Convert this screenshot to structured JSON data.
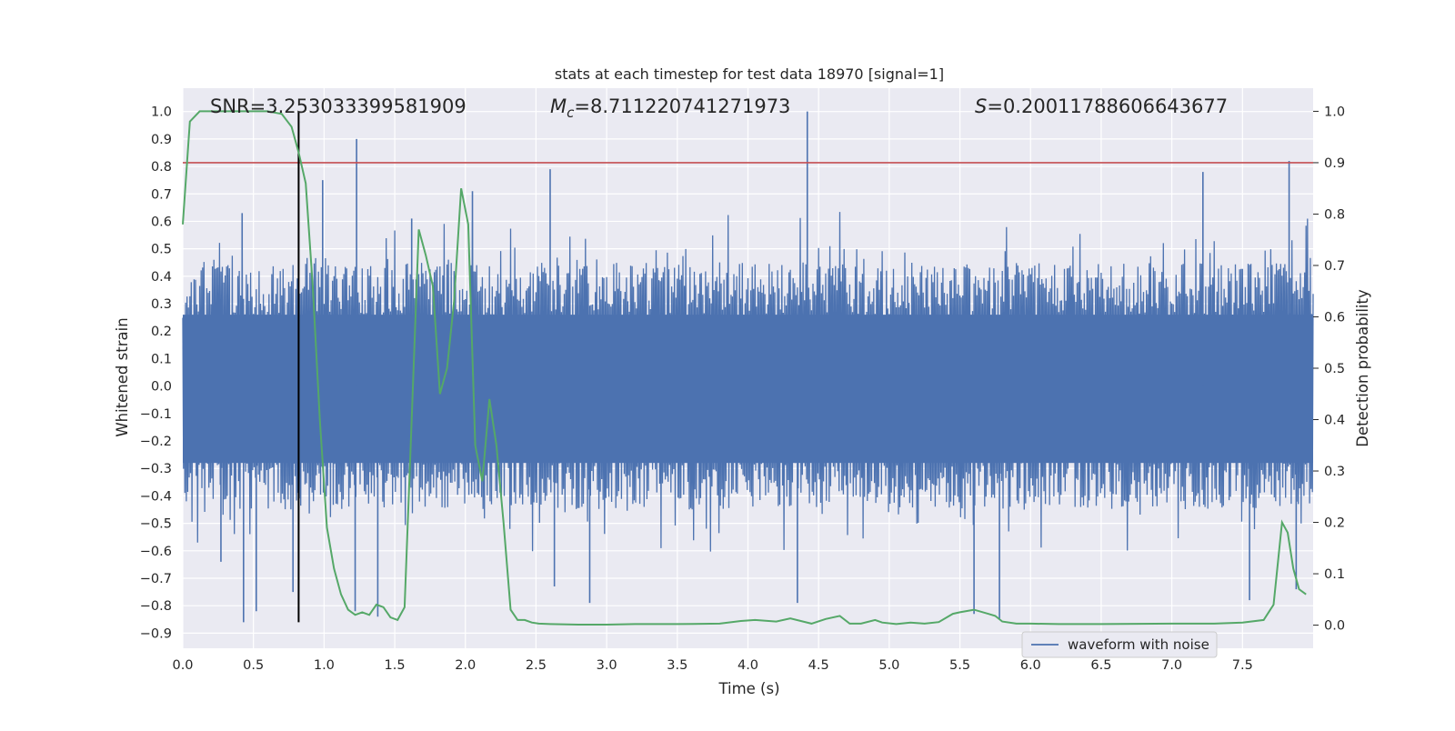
{
  "chart_data": {
    "type": "line",
    "title": "stats at each timestep for test data 18970 [signal=1]",
    "xlabel": "Time (s)",
    "ylabel": "Whitened strain",
    "ylabel_right": "Detection probability",
    "xlim": [
      0.0,
      8.0
    ],
    "ylim": [
      -0.955,
      1.085
    ],
    "ylim_right": [
      -0.045,
      1.045
    ],
    "x_ticks": [
      0.0,
      0.5,
      1.0,
      1.5,
      2.0,
      2.5,
      3.0,
      3.5,
      4.0,
      4.5,
      5.0,
      5.5,
      6.0,
      6.5,
      7.0,
      7.5
    ],
    "x_tick_labels": [
      "0.0",
      "0.5",
      "1.0",
      "1.5",
      "2.0",
      "2.5",
      "3.0",
      "3.5",
      "4.0",
      "4.5",
      "5.0",
      "5.5",
      "6.0",
      "6.5",
      "7.0",
      "7.5"
    ],
    "y_ticks": [
      1.0,
      0.9,
      0.8,
      0.7,
      0.6,
      0.5,
      0.4,
      0.3,
      0.2,
      0.1,
      0.0,
      -0.1,
      -0.2,
      -0.3,
      -0.4,
      -0.5,
      -0.6,
      -0.7,
      -0.8,
      -0.9
    ],
    "y_tick_labels": [
      "1.0",
      "0.9",
      "0.8",
      "0.7",
      "0.6",
      "0.5",
      "0.4",
      "0.3",
      "0.2",
      "0.1",
      "0.0",
      "−0.1",
      "−0.2",
      "−0.3",
      "−0.4",
      "−0.5",
      "−0.6",
      "−0.7",
      "−0.8",
      "−0.9"
    ],
    "y_right_ticks": [
      1.0,
      0.9,
      0.8,
      0.7,
      0.6,
      0.5,
      0.4,
      0.3,
      0.2,
      0.1,
      0.0
    ],
    "y_right_tick_labels": [
      "1.0",
      "0.9",
      "0.8",
      "0.7",
      "0.6",
      "0.5",
      "0.4",
      "0.3",
      "0.2",
      "0.1",
      "0.0"
    ],
    "grid": true,
    "annotations": {
      "snr": "SNR=3.253033399581909",
      "mc_symbol": "M",
      "mc_sub": "c",
      "mc_value": "=8.711220741271973",
      "s_symbol": "S",
      "s_value": "=0.20011788606643677"
    },
    "legend": {
      "position": "lower-right",
      "entries": [
        "waveform with noise"
      ]
    },
    "series": [
      {
        "name": "waveform with noise",
        "color": "#4c72b0",
        "axis": "left",
        "description_values": {
          "typical_envelope": [
            -0.45,
            0.45
          ],
          "peak_spikes": [
            {
              "t": 0.27,
              "y": -0.64
            },
            {
              "t": 0.42,
              "y": 0.63
            },
            {
              "t": 0.43,
              "y": -0.86
            },
            {
              "t": 0.52,
              "y": -0.82
            },
            {
              "t": 0.78,
              "y": -0.75
            },
            {
              "t": 0.99,
              "y": 0.75
            },
            {
              "t": 1.23,
              "y": 0.9
            },
            {
              "t": 1.22,
              "y": -0.82
            },
            {
              "t": 1.38,
              "y": -0.84
            },
            {
              "t": 1.62,
              "y": 0.61
            },
            {
              "t": 2.05,
              "y": 0.71
            },
            {
              "t": 2.6,
              "y": 0.79
            },
            {
              "t": 2.63,
              "y": -0.73
            },
            {
              "t": 2.88,
              "y": -0.79
            },
            {
              "t": 4.42,
              "y": 1.0
            },
            {
              "t": 4.35,
              "y": -0.79
            },
            {
              "t": 5.78,
              "y": -0.85
            },
            {
              "t": 5.6,
              "y": -0.83
            },
            {
              "t": 7.22,
              "y": 0.78
            },
            {
              "t": 7.55,
              "y": -0.78
            },
            {
              "t": 7.83,
              "y": 0.82
            },
            {
              "t": 7.88,
              "y": -0.74
            }
          ]
        }
      },
      {
        "name": "",
        "color": "#55a868",
        "axis": "right",
        "x": [
          0.0,
          0.05,
          0.12,
          0.2,
          0.3,
          0.4,
          0.5,
          0.6,
          0.7,
          0.77,
          0.82,
          0.87,
          0.92,
          0.97,
          1.02,
          1.07,
          1.12,
          1.17,
          1.22,
          1.27,
          1.32,
          1.37,
          1.42,
          1.47,
          1.52,
          1.57,
          1.62,
          1.67,
          1.72,
          1.77,
          1.82,
          1.87,
          1.92,
          1.97,
          2.02,
          2.07,
          2.12,
          2.17,
          2.22,
          2.27,
          2.32,
          2.37,
          2.42,
          2.47,
          2.52,
          2.6,
          2.8,
          3.0,
          3.2,
          3.5,
          3.8,
          3.95,
          4.05,
          4.2,
          4.3,
          4.45,
          4.55,
          4.65,
          4.72,
          4.8,
          4.9,
          4.95,
          5.05,
          5.15,
          5.25,
          5.35,
          5.45,
          5.5,
          5.6,
          5.7,
          5.75,
          5.8,
          5.9,
          6.0,
          6.2,
          6.5,
          7.0,
          7.3,
          7.5,
          7.65,
          7.72,
          7.78,
          7.82,
          7.86,
          7.9,
          7.95
        ],
        "y": [
          0.78,
          0.98,
          1.0,
          1.0,
          1.0,
          1.0,
          1.0,
          1.0,
          0.995,
          0.97,
          0.92,
          0.86,
          0.66,
          0.4,
          0.19,
          0.11,
          0.06,
          0.03,
          0.02,
          0.025,
          0.02,
          0.04,
          0.035,
          0.015,
          0.01,
          0.035,
          0.4,
          0.77,
          0.72,
          0.66,
          0.45,
          0.5,
          0.63,
          0.85,
          0.78,
          0.35,
          0.28,
          0.44,
          0.35,
          0.2,
          0.03,
          0.01,
          0.01,
          0.005,
          0.003,
          0.002,
          0.001,
          0.001,
          0.002,
          0.002,
          0.003,
          0.008,
          0.01,
          0.007,
          0.013,
          0.003,
          0.012,
          0.018,
          0.003,
          0.003,
          0.01,
          0.005,
          0.002,
          0.005,
          0.003,
          0.006,
          0.022,
          0.025,
          0.03,
          0.022,
          0.018,
          0.007,
          0.003,
          0.003,
          0.002,
          0.002,
          0.003,
          0.003,
          0.005,
          0.01,
          0.04,
          0.2,
          0.18,
          0.11,
          0.07,
          0.06
        ]
      },
      {
        "name": "",
        "color": "#c44e52",
        "axis": "right",
        "type": "hline",
        "y": 0.9
      },
      {
        "name": "",
        "color": "#000000",
        "axis": "left",
        "type": "vline",
        "x": 0.82,
        "y_range": [
          -0.86,
          1.0
        ]
      }
    ]
  }
}
